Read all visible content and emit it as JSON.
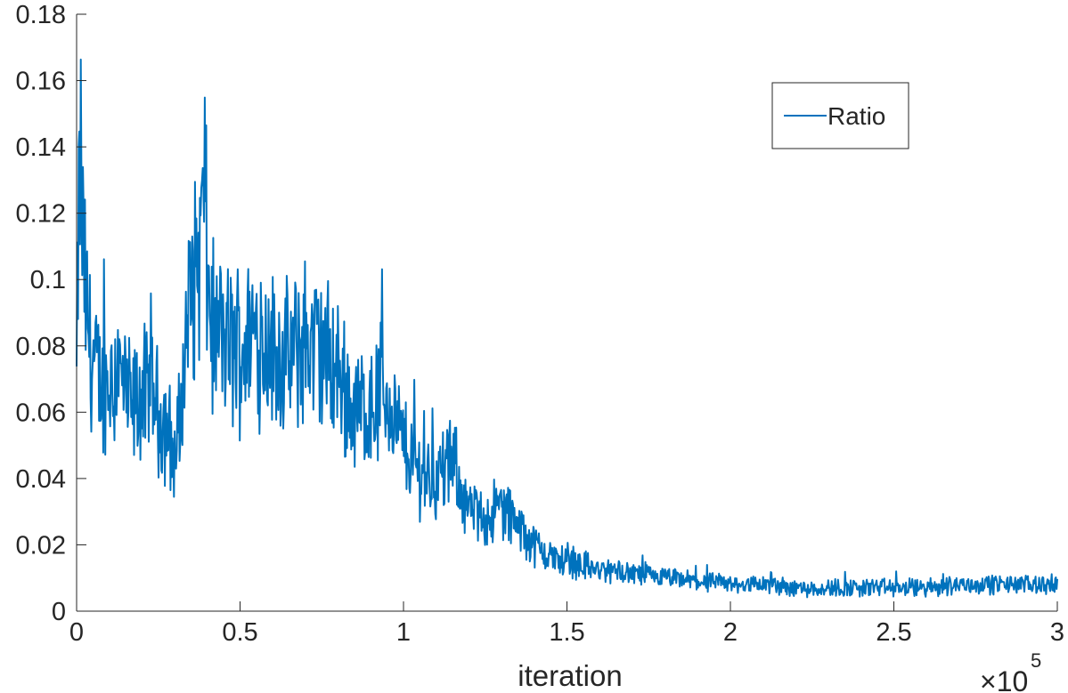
{
  "chart_data": {
    "type": "line",
    "title": "",
    "xlabel": "iteration",
    "ylabel": "",
    "x_multiplier": {
      "base": "×10",
      "exponent": "5"
    },
    "xlim": [
      0,
      3
    ],
    "ylim": [
      0,
      0.18
    ],
    "x_ticks": [
      0,
      0.5,
      1,
      1.5,
      2,
      2.5,
      3
    ],
    "x_tick_labels": [
      "0",
      "0.5",
      "1",
      "1.5",
      "2",
      "2.5",
      "3"
    ],
    "y_ticks": [
      0,
      0.02,
      0.04,
      0.06,
      0.08,
      0.1,
      0.12,
      0.14,
      0.16,
      0.18
    ],
    "y_tick_labels": [
      "0",
      "0.02",
      "0.04",
      "0.06",
      "0.08",
      "0.1",
      "0.12",
      "0.14",
      "0.16",
      "0.18"
    ],
    "grid": false,
    "legend_position": "top-right",
    "series": [
      {
        "name": "Ratio",
        "color": "#0072BD",
        "x": [
          0,
          0.01,
          0.02,
          0.03,
          0.05,
          0.07,
          0.1,
          0.13,
          0.15,
          0.17,
          0.2,
          0.23,
          0.25,
          0.28,
          0.3,
          0.32,
          0.34,
          0.36,
          0.38,
          0.39,
          0.4,
          0.42,
          0.45,
          0.5,
          0.55,
          0.6,
          0.65,
          0.7,
          0.75,
          0.8,
          0.85,
          0.9,
          0.95,
          1.0,
          1.05,
          1.1,
          1.15,
          1.2,
          1.25,
          1.3,
          1.35,
          1.4,
          1.45,
          1.5,
          1.55,
          1.6,
          1.65,
          1.7,
          1.8,
          1.9,
          2.0,
          2.1,
          2.2,
          2.3,
          2.4,
          2.5,
          2.6,
          2.7,
          2.8,
          2.9,
          3.0
        ],
        "y": [
          0.07,
          0.14,
          0.11,
          0.09,
          0.075,
          0.068,
          0.07,
          0.072,
          0.065,
          0.06,
          0.066,
          0.064,
          0.06,
          0.055,
          0.045,
          0.06,
          0.09,
          0.1,
          0.11,
          0.13,
          0.1,
          0.082,
          0.08,
          0.08,
          0.085,
          0.078,
          0.075,
          0.082,
          0.078,
          0.072,
          0.06,
          0.062,
          0.065,
          0.05,
          0.042,
          0.04,
          0.045,
          0.03,
          0.028,
          0.032,
          0.025,
          0.02,
          0.016,
          0.015,
          0.014,
          0.012,
          0.012,
          0.011,
          0.01,
          0.009,
          0.008,
          0.008,
          0.007,
          0.007,
          0.007,
          0.007,
          0.007,
          0.008,
          0.008,
          0.008,
          0.008
        ]
      }
    ]
  }
}
